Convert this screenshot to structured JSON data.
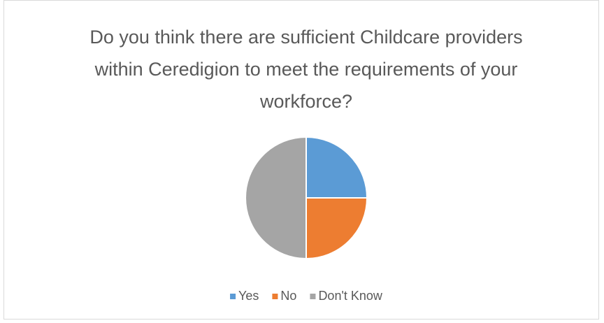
{
  "chart_data": {
    "type": "pie",
    "title": "Do you think there are sufficient Childcare providers within Ceredigion to meet the requirements of your workforce?",
    "categories": [
      "Yes",
      "No",
      "Don't Know"
    ],
    "values": [
      25,
      25,
      50
    ],
    "colors": [
      "#5b9bd5",
      "#ed7d31",
      "#a5a5a5"
    ],
    "legend": "bottom"
  }
}
